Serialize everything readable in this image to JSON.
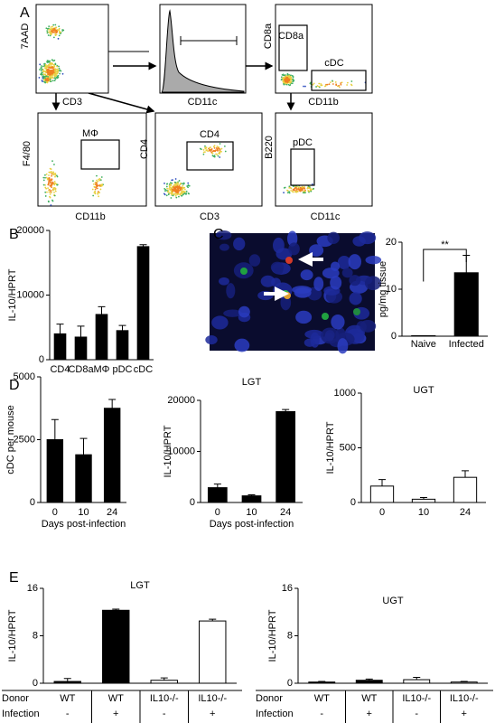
{
  "panel_labels": [
    "A",
    "B",
    "C",
    "D",
    "E"
  ],
  "flow_cytometry": {
    "plots": [
      {
        "x_label": "CD3",
        "y_label": "7AAD",
        "gates": []
      },
      {
        "x_label": "CD11c",
        "gates": []
      },
      {
        "x_label": "CD11b",
        "y_label": "CD8a",
        "gates": [
          "CD8a",
          "cDC"
        ]
      },
      {
        "x_label": "CD11b",
        "y_label": "F4/80",
        "gates": [
          "MΦ"
        ]
      },
      {
        "x_label": "CD3",
        "y_label": "CD4",
        "gates": [
          "CD4"
        ]
      },
      {
        "x_label": "CD11c",
        "y_label": "B220",
        "gates": [
          "pDC"
        ]
      }
    ]
  },
  "chart_data": [
    {
      "type": "bar",
      "ylabel": "IL-10/HPRT",
      "categories": [
        "CD4",
        "CD8a",
        "MΦ",
        "pDC",
        "cDC"
      ],
      "values": [
        4000,
        3500,
        7000,
        4500,
        17500
      ],
      "errors": [
        1500,
        1700,
        1200,
        800,
        300
      ],
      "colors": [
        "#000000",
        "#000000",
        "#000000",
        "#000000",
        "#000000"
      ],
      "ylim": [
        0,
        20000
      ],
      "yticks": [
        0,
        10000,
        20000
      ]
    },
    {
      "type": "bar",
      "ylabel": "pg/mg tissue",
      "categories": [
        "Naive",
        "Infected"
      ],
      "values": [
        0.1,
        13.5
      ],
      "errors": [
        0,
        3.7
      ],
      "colors": [
        "#000000",
        "#000000"
      ],
      "ylim": [
        0,
        20
      ],
      "yticks": [
        0,
        10,
        20
      ],
      "annotation": "**"
    },
    {
      "type": "bar",
      "ylabel": "cDC per mouse",
      "xlabel": "Days post-infection",
      "categories": [
        "0",
        "10",
        "24"
      ],
      "values": [
        2500,
        1900,
        3750
      ],
      "errors": [
        800,
        650,
        350
      ],
      "colors": [
        "#000000",
        "#000000",
        "#000000"
      ],
      "ylim": [
        0,
        5000
      ],
      "yticks": [
        0,
        2500,
        5000
      ]
    },
    {
      "type": "bar",
      "title": "LGT",
      "ylabel": "IL-10/HPRT",
      "xlabel": "Days post-infection",
      "categories": [
        "0",
        "10",
        "24"
      ],
      "values": [
        2900,
        1300,
        17800
      ],
      "errors": [
        700,
        200,
        400
      ],
      "colors": [
        "#000000",
        "#000000",
        "#000000"
      ],
      "ylim": [
        0,
        20000
      ],
      "yticks": [
        0,
        10000,
        20000
      ]
    },
    {
      "type": "bar",
      "title": "UGT",
      "ylabel": "IL-10/HPRT",
      "categories": [
        "0",
        "10",
        "24"
      ],
      "values": [
        150,
        30,
        230
      ],
      "errors": [
        60,
        15,
        60
      ],
      "colors": [
        "#ffffff",
        "#ffffff",
        "#ffffff"
      ],
      "ylim": [
        0,
        1000
      ],
      "yticks": [
        0,
        500,
        1000
      ]
    },
    {
      "type": "bar",
      "title": "LGT",
      "ylabel": "IL-10/HPRT",
      "values": [
        0.3,
        12.3,
        0.5,
        10.5
      ],
      "errors": [
        0.5,
        0.2,
        0.4,
        0.3
      ],
      "colors": [
        "#000000",
        "#000000",
        "#ffffff",
        "#ffffff"
      ],
      "ylim": [
        0,
        16
      ],
      "yticks": [
        0,
        8,
        16
      ],
      "table": {
        "rows": [
          {
            "label": "Donor",
            "cells": [
              "WT",
              "WT",
              "IL10-/-",
              "IL10-/-"
            ]
          },
          {
            "label": "Infection",
            "cells": [
              "-",
              "+",
              "-",
              "+"
            ]
          }
        ]
      }
    },
    {
      "type": "bar",
      "title": "UGT",
      "ylabel": "IL-10/HPRT",
      "values": [
        0.2,
        0.5,
        0.6,
        0.2
      ],
      "errors": [
        0.1,
        0.2,
        0.4,
        0.1
      ],
      "colors": [
        "#000000",
        "#000000",
        "#ffffff",
        "#ffffff"
      ],
      "ylim": [
        0,
        16
      ],
      "yticks": [
        0,
        8,
        16
      ],
      "table": {
        "rows": [
          {
            "label": "Donor",
            "cells": [
              "WT",
              "WT",
              "IL10-/-",
              "IL10-/-"
            ]
          },
          {
            "label": "Infection",
            "cells": [
              "-",
              "+",
              "-",
              "+"
            ]
          }
        ]
      }
    }
  ]
}
